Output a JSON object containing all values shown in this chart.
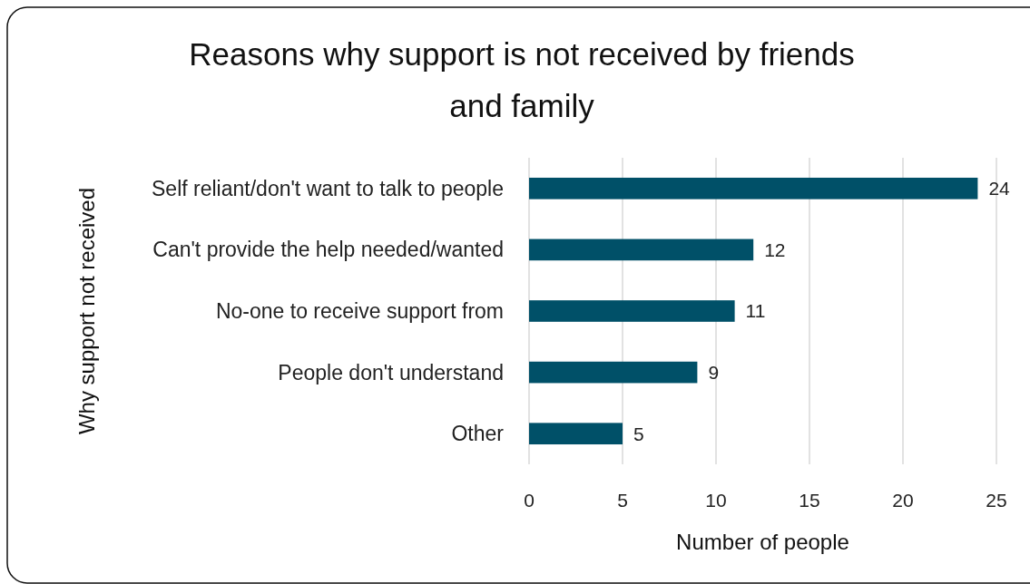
{
  "chart_data": {
    "type": "bar",
    "orientation": "horizontal",
    "title": "Reasons why support is not received by friends and family",
    "xlabel": "Number of people",
    "ylabel": "Why support not received",
    "categories": [
      "Self reliant/don't want to talk to people",
      "Can't provide the help needed/wanted",
      "No-one to receive support from",
      "People don't understand",
      "Other"
    ],
    "values": [
      24,
      12,
      11,
      9,
      5
    ],
    "color": "#005068",
    "xlim": [
      0,
      25
    ],
    "xticks": [
      0,
      5,
      10,
      15,
      20,
      25
    ],
    "grid": "x",
    "data_labels": true
  }
}
